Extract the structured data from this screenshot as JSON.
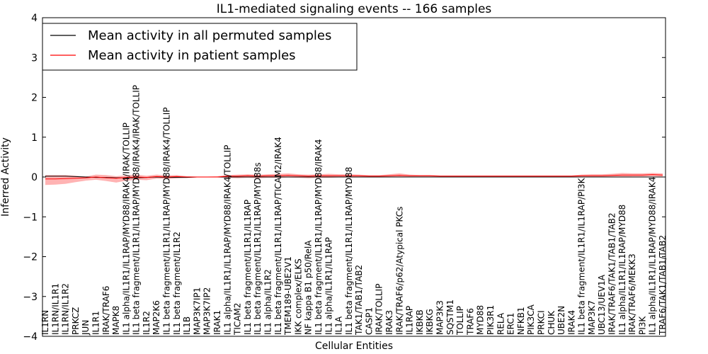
{
  "chart_data": {
    "type": "line",
    "title": "IL1-mediated signaling events -- 166 samples",
    "xlabel": "Cellular Entities",
    "ylabel": "Inferred Activity",
    "ylim": [
      -4,
      4
    ],
    "yticks": [
      -4,
      -3,
      -2,
      -1,
      0,
      1,
      2,
      3,
      4
    ],
    "ytick_labels": [
      "−4",
      "−3",
      "−2",
      "−1",
      "0",
      "1",
      "2",
      "3",
      "4"
    ],
    "legend_position": "top-left",
    "categories": [
      "IL1RN",
      "IL1RN/IL1R1",
      "IL1RN/IL1R2",
      "PRKCZ",
      "JUN",
      "IL1R1",
      "IRAK/TRAF6",
      "MAPK8",
      "IL1 alpha/IL1R1/IL1RAP/MYD88/IRAK4/IRAK/TOLLIP",
      "IL1 beta fragment/IL1R1/IL1RAP/MYD88/IRAK4/IRAK/TOLLIP",
      "IL1R2",
      "MAP2K6",
      "IL1 beta fragment/IL1R1/IL1RAP/MYD88/IRAK4/TOLLIP",
      "IL1 beta fragment/IL1R2",
      "IL1B",
      "MAP3K7IP1",
      "MAP3K7IP2",
      "IRAK1",
      "IL1 alpha/IL1R1/IL1RAP/MYD88/IRAK4/TOLLIP",
      "TICAM2",
      "IL1 beta fragment/IL1R1/IL1RAP",
      "IL1 beta fragment/IL1R1/IL1RAP/MYD88s",
      "IL1 alpha/IL1R2",
      "IL1 beta fragment/IL1R1/IL1RAP/TICAM2/IRAK4",
      "TMEM189-UBE2V1",
      "IKK complex/ELKS",
      "NF kappa B1 p50/RelA",
      "IL1 beta fragment/IL1R1/IL1RAP/MYD88/IRAK4",
      "IL1 alpha/IL1R1/IL1RAP",
      "IL1A",
      "IL1 beta fragment/IL1R1/IL1RAP/MYD88",
      "TAK1/TAB1/TAB2",
      "CASP1",
      "IRAK/TOLLIP",
      "IRAK3",
      "IRAK/TRAF6/p62/Atypical PKCs",
      "IL1RAP",
      "IKBKB",
      "IKBKG",
      "MAP3K3",
      "SQSTM1",
      "TOLLIP",
      "TRAF6",
      "MYD88",
      "PIK3R1",
      "RELA",
      "ERC1",
      "NFKB1",
      "PIK3CA",
      "PRKCI",
      "CHUK",
      "UBE2N",
      "IRAK4",
      "IL1 beta fragment/IL1R1/IL1RAP/PI3K",
      "MAP3K7",
      "UBC13/UEV1A",
      "IRAK/TRAF6/TAK1/TAB1/TAB2",
      "IL1 alpha/IL1R1/IL1RAP/MYD88",
      "IRAK/TRAF6/MEKK3",
      "PI3K",
      "IL1 alpha/IL1R1/IL1RAP/MYD88/IRAK4",
      "TRAF6/TAK1/TAB1/TAB2"
    ],
    "series": [
      {
        "name": "Mean activity in all permuted samples",
        "color": "#000000",
        "values": [
          0.02,
          0.02,
          0.02,
          0.01,
          0.0,
          -0.01,
          -0.01,
          -0.02,
          -0.02,
          -0.02,
          -0.01,
          0.0,
          -0.01,
          -0.01,
          -0.01,
          0.0,
          0.0,
          0.0,
          0.0,
          0.0,
          0.0,
          0.0,
          0.0,
          0.0,
          0.0,
          0.0,
          0.0,
          0.0,
          0.0,
          0.0,
          0.0,
          0.0,
          0.0,
          0.0,
          0.0,
          0.0,
          0.0,
          0.0,
          0.0,
          0.0,
          0.0,
          0.0,
          0.0,
          0.0,
          0.0,
          0.0,
          0.0,
          0.0,
          0.0,
          0.0,
          0.0,
          0.0,
          0.0,
          0.0,
          0.0,
          0.0,
          0.0,
          0.0,
          0.0,
          0.0,
          0.0,
          0.0
        ]
      },
      {
        "name": "Mean activity in patient samples",
        "color": "#ff0000",
        "band_color": "#ff9a9a",
        "values": [
          -0.05,
          -0.05,
          -0.04,
          -0.03,
          -0.02,
          0.0,
          -0.02,
          -0.03,
          -0.01,
          0.0,
          -0.01,
          0.01,
          0.0,
          0.01,
          0.0,
          0.0,
          0.0,
          0.0,
          0.02,
          0.02,
          0.03,
          0.02,
          0.03,
          0.03,
          0.04,
          0.03,
          0.02,
          0.03,
          0.03,
          0.03,
          0.03,
          0.03,
          0.02,
          0.02,
          0.03,
          0.04,
          0.03,
          0.03,
          0.03,
          0.02,
          0.02,
          0.02,
          0.02,
          0.02,
          0.02,
          0.02,
          0.02,
          0.02,
          0.02,
          0.02,
          0.02,
          0.02,
          0.02,
          0.03,
          0.03,
          0.03,
          0.04,
          0.05,
          0.05,
          0.05,
          0.06,
          0.05
        ],
        "band_upper": [
          0.05,
          0.05,
          0.05,
          0.03,
          0.01,
          0.06,
          0.05,
          0.02,
          0.04,
          0.06,
          0.03,
          0.06,
          0.04,
          0.05,
          0.02,
          0.01,
          0.01,
          0.02,
          0.05,
          0.06,
          0.07,
          0.06,
          0.07,
          0.08,
          0.09,
          0.07,
          0.06,
          0.07,
          0.08,
          0.07,
          0.07,
          0.06,
          0.05,
          0.05,
          0.07,
          0.09,
          0.06,
          0.05,
          0.05,
          0.04,
          0.04,
          0.04,
          0.04,
          0.04,
          0.04,
          0.04,
          0.04,
          0.04,
          0.04,
          0.04,
          0.04,
          0.04,
          0.04,
          0.06,
          0.07,
          0.07,
          0.08,
          0.1,
          0.09,
          0.09,
          0.1,
          0.09
        ],
        "band_lower": [
          -0.2,
          -0.19,
          -0.17,
          -0.13,
          -0.09,
          -0.07,
          -0.1,
          -0.14,
          -0.09,
          -0.07,
          -0.08,
          -0.04,
          -0.05,
          -0.03,
          -0.02,
          -0.01,
          -0.01,
          -0.01,
          -0.02,
          -0.03,
          -0.02,
          -0.03,
          -0.02,
          -0.02,
          -0.01,
          -0.02,
          -0.03,
          -0.02,
          -0.02,
          -0.01,
          -0.01,
          -0.01,
          -0.01,
          -0.01,
          -0.01,
          0.0,
          0.0,
          0.0,
          0.0,
          0.0,
          0.0,
          0.0,
          0.0,
          0.0,
          0.0,
          0.0,
          0.0,
          0.0,
          0.0,
          0.0,
          0.0,
          0.0,
          0.0,
          0.0,
          0.0,
          0.0,
          0.0,
          0.0,
          0.01,
          0.01,
          0.02,
          0.01
        ]
      }
    ]
  }
}
